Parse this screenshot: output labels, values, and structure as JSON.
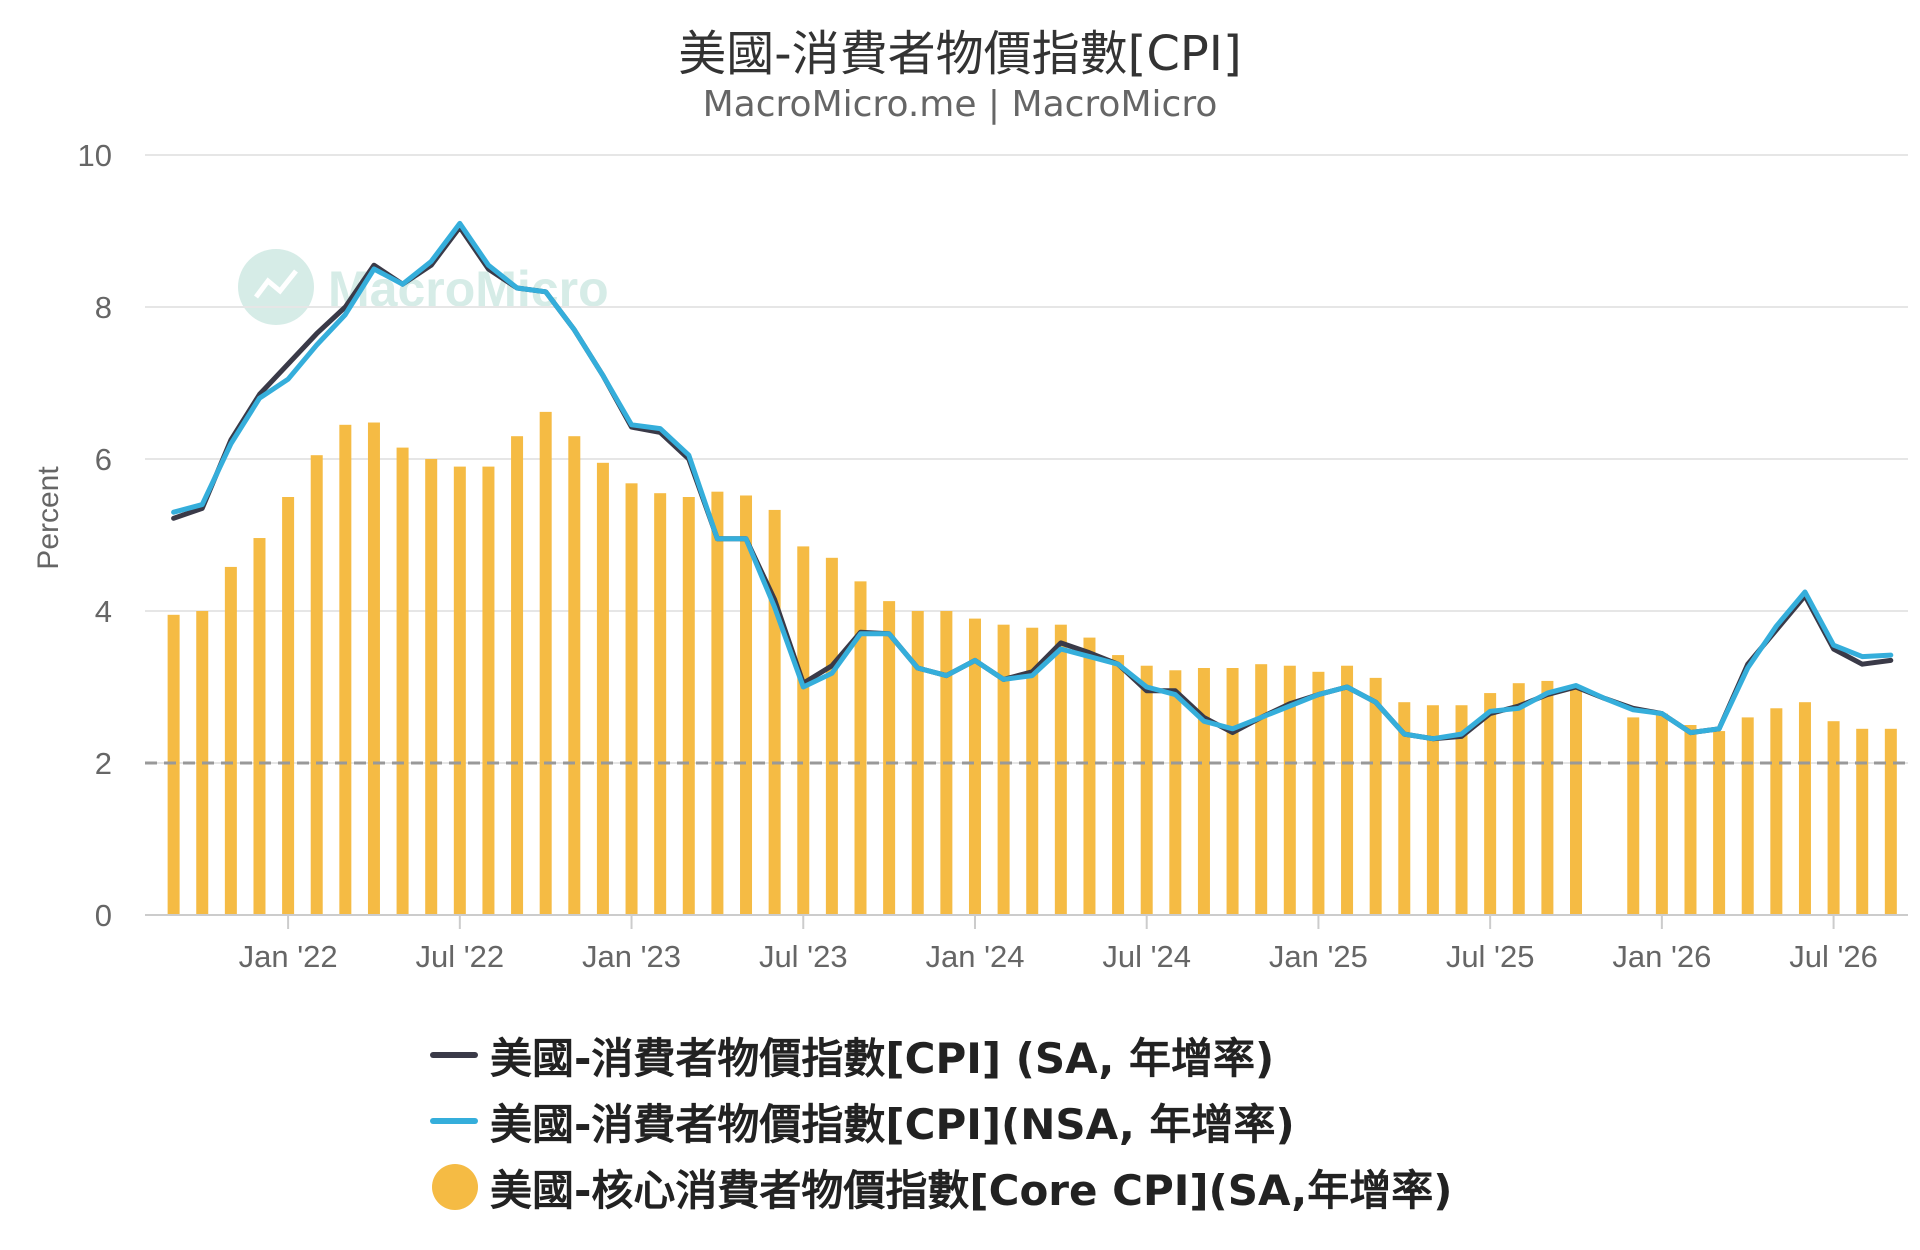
{
  "title": "美國-消費者物價指數[CPI]",
  "subtitle": "MacroMicro.me | MacroMicro",
  "watermark": "MacroMicro",
  "colors": {
    "cpi_sa": "#3a3a48",
    "cpi_nsa": "#35aedb",
    "core": "#f5bb44",
    "target_line": "#999999",
    "grid": "#e6e6e6"
  },
  "chart_data": {
    "type": "bar",
    "ylabel": "Percent",
    "ylim": [
      0,
      10
    ],
    "yticks": [
      0,
      2,
      4,
      6,
      8,
      10
    ],
    "x_start": "2021-09",
    "x_end": "2026-08",
    "x_ticks": [
      {
        "label": "Jan '22",
        "date": "2022-01"
      },
      {
        "label": "Jul '22",
        "date": "2022-07"
      },
      {
        "label": "Jan '23",
        "date": "2023-01"
      },
      {
        "label": "Jul '23",
        "date": "2023-07"
      },
      {
        "label": "Jan '24",
        "date": "2024-01"
      },
      {
        "label": "Jul '24",
        "date": "2024-07"
      },
      {
        "label": "Jan '25",
        "date": "2025-01"
      },
      {
        "label": "Jul '25",
        "date": "2025-07"
      },
      {
        "label": "Jan '26",
        "date": "2026-01"
      },
      {
        "label": "Jul '26",
        "date": "2026-07"
      }
    ],
    "reference_line": 2,
    "grid": true,
    "legend_position": "bottom",
    "series": [
      {
        "name": "美國-消費者物價指數[CPI] (SA, 年增率)",
        "kind": "line",
        "points": [
          [
            "2021-09",
            5.22
          ],
          [
            "2021-10",
            5.35
          ],
          [
            "2021-11",
            6.25
          ],
          [
            "2021-12",
            6.85
          ],
          [
            "2022-01",
            7.25
          ],
          [
            "2022-02",
            7.65
          ],
          [
            "2022-03",
            8.0
          ],
          [
            "2022-04",
            8.55
          ],
          [
            "2022-05",
            8.3
          ],
          [
            "2022-06",
            8.55
          ],
          [
            "2022-07",
            9.05
          ],
          [
            "2022-08",
            8.5
          ],
          [
            "2022-09",
            8.25
          ],
          [
            "2022-10",
            8.2
          ],
          [
            "2022-11",
            7.7
          ],
          [
            "2022-12",
            7.1
          ],
          [
            "2023-01",
            6.42
          ],
          [
            "2023-02",
            6.35
          ],
          [
            "2023-03",
            6.0
          ],
          [
            "2023-04",
            4.95
          ],
          [
            "2023-05",
            4.95
          ],
          [
            "2023-06",
            4.15
          ],
          [
            "2023-07",
            3.05
          ],
          [
            "2023-08",
            3.28
          ],
          [
            "2023-09",
            3.72
          ],
          [
            "2023-10",
            3.7
          ],
          [
            "2023-11",
            3.25
          ],
          [
            "2023-12",
            3.15
          ],
          [
            "2024-01",
            3.35
          ],
          [
            "2024-02",
            3.1
          ],
          [
            "2024-03",
            3.2
          ],
          [
            "2024-04",
            3.58
          ],
          [
            "2024-05",
            3.45
          ],
          [
            "2024-06",
            3.3
          ],
          [
            "2024-07",
            2.95
          ],
          [
            "2024-08",
            2.95
          ],
          [
            "2024-09",
            2.6
          ],
          [
            "2024-10",
            2.4
          ],
          [
            "2024-11",
            2.6
          ],
          [
            "2024-12",
            2.78
          ],
          [
            "2025-01",
            2.9
          ],
          [
            "2025-02",
            3.0
          ],
          [
            "2025-03",
            2.8
          ],
          [
            "2025-04",
            2.38
          ],
          [
            "2025-05",
            2.32
          ],
          [
            "2025-06",
            2.35
          ],
          [
            "2025-07",
            2.65
          ],
          [
            "2025-08",
            2.75
          ],
          [
            "2025-09",
            2.9
          ],
          [
            "2025-10",
            3.0
          ],
          [
            "2025-11",
            2.85
          ],
          [
            "2025-12",
            2.72
          ],
          [
            "2026-01",
            2.65
          ],
          [
            "2026-02",
            2.4
          ],
          [
            "2026-03",
            2.45
          ],
          [
            "2026-04",
            3.3
          ],
          [
            "2026-05",
            3.75
          ],
          [
            "2026-06",
            4.2
          ],
          [
            "2026-07",
            3.5
          ],
          [
            "2026-08",
            3.3
          ],
          [
            "2026-09",
            3.35
          ]
        ]
      },
      {
        "name": "美國-消費者物價指數[CPI](NSA, 年增率)",
        "kind": "line",
        "points": [
          [
            "2021-09",
            5.3
          ],
          [
            "2021-10",
            5.4
          ],
          [
            "2021-11",
            6.2
          ],
          [
            "2021-12",
            6.8
          ],
          [
            "2022-01",
            7.05
          ],
          [
            "2022-02",
            7.5
          ],
          [
            "2022-03",
            7.9
          ],
          [
            "2022-04",
            8.5
          ],
          [
            "2022-05",
            8.3
          ],
          [
            "2022-06",
            8.6
          ],
          [
            "2022-07",
            9.1
          ],
          [
            "2022-08",
            8.55
          ],
          [
            "2022-09",
            8.25
          ],
          [
            "2022-10",
            8.2
          ],
          [
            "2022-11",
            7.7
          ],
          [
            "2022-12",
            7.1
          ],
          [
            "2023-01",
            6.45
          ],
          [
            "2023-02",
            6.4
          ],
          [
            "2023-03",
            6.05
          ],
          [
            "2023-04",
            4.95
          ],
          [
            "2023-05",
            4.95
          ],
          [
            "2023-06",
            4.05
          ],
          [
            "2023-07",
            3.0
          ],
          [
            "2023-08",
            3.18
          ],
          [
            "2023-09",
            3.7
          ],
          [
            "2023-10",
            3.7
          ],
          [
            "2023-11",
            3.25
          ],
          [
            "2023-12",
            3.15
          ],
          [
            "2024-01",
            3.35
          ],
          [
            "2024-02",
            3.1
          ],
          [
            "2024-03",
            3.15
          ],
          [
            "2024-04",
            3.5
          ],
          [
            "2024-05",
            3.4
          ],
          [
            "2024-06",
            3.3
          ],
          [
            "2024-07",
            3.0
          ],
          [
            "2024-08",
            2.9
          ],
          [
            "2024-09",
            2.55
          ],
          [
            "2024-10",
            2.45
          ],
          [
            "2024-11",
            2.6
          ],
          [
            "2024-12",
            2.75
          ],
          [
            "2025-01",
            2.9
          ],
          [
            "2025-02",
            3.0
          ],
          [
            "2025-03",
            2.8
          ],
          [
            "2025-04",
            2.38
          ],
          [
            "2025-05",
            2.32
          ],
          [
            "2025-06",
            2.38
          ],
          [
            "2025-07",
            2.68
          ],
          [
            "2025-08",
            2.72
          ],
          [
            "2025-09",
            2.92
          ],
          [
            "2025-10",
            3.02
          ],
          [
            "2025-11",
            2.85
          ],
          [
            "2025-12",
            2.7
          ],
          [
            "2026-01",
            2.65
          ],
          [
            "2026-02",
            2.4
          ],
          [
            "2026-03",
            2.45
          ],
          [
            "2026-04",
            3.25
          ],
          [
            "2026-05",
            3.8
          ],
          [
            "2026-06",
            4.25
          ],
          [
            "2026-07",
            3.55
          ],
          [
            "2026-08",
            3.4
          ],
          [
            "2026-09",
            3.42
          ]
        ]
      },
      {
        "name": "美國-核心消費者物價指數[Core CPI](SA,年增率)",
        "kind": "bar",
        "points": [
          [
            "2021-09",
            3.95
          ],
          [
            "2021-10",
            4.0
          ],
          [
            "2021-11",
            4.58
          ],
          [
            "2021-12",
            4.96
          ],
          [
            "2022-01",
            5.5
          ],
          [
            "2022-02",
            6.05
          ],
          [
            "2022-03",
            6.45
          ],
          [
            "2022-04",
            6.48
          ],
          [
            "2022-05",
            6.15
          ],
          [
            "2022-06",
            6.0
          ],
          [
            "2022-07",
            5.9
          ],
          [
            "2022-08",
            5.9
          ],
          [
            "2022-09",
            6.3
          ],
          [
            "2022-10",
            6.62
          ],
          [
            "2022-11",
            6.3
          ],
          [
            "2022-12",
            5.95
          ],
          [
            "2023-01",
            5.68
          ],
          [
            "2023-02",
            5.55
          ],
          [
            "2023-03",
            5.5
          ],
          [
            "2023-04",
            5.57
          ],
          [
            "2023-05",
            5.52
          ],
          [
            "2023-06",
            5.33
          ],
          [
            "2023-07",
            4.85
          ],
          [
            "2023-08",
            4.7
          ],
          [
            "2023-09",
            4.39
          ],
          [
            "2023-10",
            4.13
          ],
          [
            "2023-11",
            4.0
          ],
          [
            "2023-12",
            4.0
          ],
          [
            "2024-01",
            3.9
          ],
          [
            "2024-02",
            3.82
          ],
          [
            "2024-03",
            3.78
          ],
          [
            "2024-04",
            3.82
          ],
          [
            "2024-05",
            3.65
          ],
          [
            "2024-06",
            3.42
          ],
          [
            "2024-07",
            3.28
          ],
          [
            "2024-08",
            3.22
          ],
          [
            "2024-09",
            3.25
          ],
          [
            "2024-10",
            3.25
          ],
          [
            "2024-11",
            3.3
          ],
          [
            "2024-12",
            3.28
          ],
          [
            "2025-01",
            3.2
          ],
          [
            "2025-02",
            3.28
          ],
          [
            "2025-03",
            3.12
          ],
          [
            "2025-04",
            2.8
          ],
          [
            "2025-05",
            2.76
          ],
          [
            "2025-06",
            2.76
          ],
          [
            "2025-07",
            2.92
          ],
          [
            "2025-08",
            3.05
          ],
          [
            "2025-09",
            3.08
          ],
          [
            "2025-10",
            3.0
          ],
          [
            "2025-12",
            2.6
          ],
          [
            "2026-01",
            2.65
          ],
          [
            "2026-02",
            2.5
          ],
          [
            "2026-03",
            2.42
          ],
          [
            "2026-04",
            2.6
          ],
          [
            "2026-05",
            2.72
          ],
          [
            "2026-06",
            2.8
          ],
          [
            "2026-07",
            2.55
          ],
          [
            "2026-08",
            2.45
          ],
          [
            "2026-09",
            2.45
          ]
        ]
      }
    ]
  }
}
